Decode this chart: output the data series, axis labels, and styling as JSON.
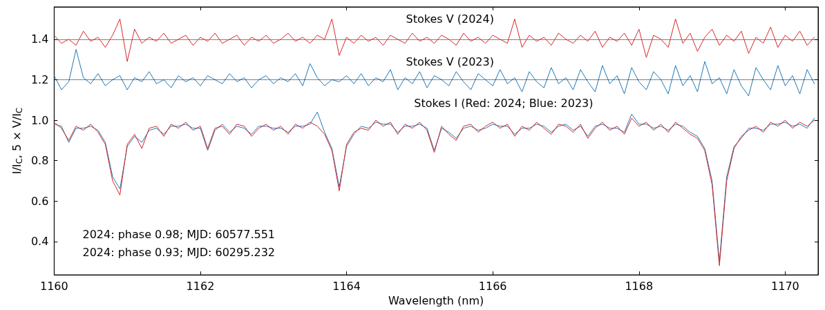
{
  "chart_data": {
    "type": "line",
    "xlabel": "Wavelength (nm)",
    "ylabel": "I/I$_{C}$, 5 × V/I$_{C}$",
    "xlim": [
      1160,
      1170.45
    ],
    "xticks": [
      1160,
      1162,
      1164,
      1166,
      1168,
      1170
    ],
    "ylim": [
      0.235,
      1.56
    ],
    "yticks": [
      0.4,
      0.6,
      0.8,
      {
        "value": 1.0,
        "label": "1.0"
      },
      1.2,
      1.4
    ],
    "grid": false,
    "marker": "none",
    "line_style": "solid",
    "x": [
      1160.0,
      1160.1,
      1160.2,
      1160.3,
      1160.4,
      1160.5,
      1160.6,
      1160.7,
      1160.8,
      1160.9,
      1161.0,
      1161.1,
      1161.2,
      1161.3,
      1161.4,
      1161.5,
      1161.6,
      1161.7,
      1161.8,
      1161.9,
      1162.0,
      1162.1,
      1162.2,
      1162.3,
      1162.4,
      1162.5,
      1162.6,
      1162.7,
      1162.8,
      1162.9,
      1163.0,
      1163.1,
      1163.2,
      1163.3,
      1163.4,
      1163.5,
      1163.6,
      1163.7,
      1163.8,
      1163.9,
      1164.0,
      1164.1,
      1164.2,
      1164.3,
      1164.4,
      1164.5,
      1164.6,
      1164.7,
      1164.8,
      1164.9,
      1165.0,
      1165.1,
      1165.2,
      1165.3,
      1165.4,
      1165.5,
      1165.6,
      1165.7,
      1165.8,
      1165.9,
      1166.0,
      1166.1,
      1166.2,
      1166.3,
      1166.4,
      1166.5,
      1166.6,
      1166.7,
      1166.8,
      1166.9,
      1167.0,
      1167.1,
      1167.2,
      1167.3,
      1167.4,
      1167.5,
      1167.6,
      1167.7,
      1167.8,
      1167.9,
      1168.0,
      1168.1,
      1168.2,
      1168.3,
      1168.4,
      1168.5,
      1168.6,
      1168.7,
      1168.8,
      1168.9,
      1169.0,
      1169.1,
      1169.2,
      1169.3,
      1169.4,
      1169.5,
      1169.6,
      1169.7,
      1169.8,
      1169.9,
      1170.0,
      1170.1,
      1170.2,
      1170.3,
      1170.4
    ],
    "series": [
      {
        "color": "#1f77b4",
        "values": [
          0.98,
          0.97,
          0.89,
          0.96,
          0.96,
          0.97,
          0.95,
          0.89,
          0.72,
          0.66,
          0.87,
          0.92,
          0.89,
          0.95,
          0.96,
          0.93,
          0.97,
          0.97,
          0.98,
          0.96,
          0.96,
          0.85,
          0.95,
          0.98,
          0.94,
          0.97,
          0.96,
          0.93,
          0.97,
          0.97,
          0.96,
          0.96,
          0.94,
          0.97,
          0.97,
          0.98,
          1.04,
          0.94,
          0.86,
          0.67,
          0.87,
          0.93,
          0.97,
          0.96,
          0.99,
          0.98,
          0.98,
          0.94,
          0.97,
          0.97,
          0.98,
          0.96,
          0.85,
          0.96,
          0.94,
          0.91,
          0.96,
          0.97,
          0.95,
          0.96,
          0.98,
          0.97,
          0.97,
          0.93,
          0.96,
          0.96,
          0.98,
          0.97,
          0.94,
          0.97,
          0.98,
          0.95,
          0.97,
          0.92,
          0.97,
          0.98,
          0.96,
          0.96,
          0.94,
          1.03,
          0.98,
          0.98,
          0.96,
          0.97,
          0.95,
          0.98,
          0.97,
          0.94,
          0.92,
          0.86,
          0.7,
          0.3,
          0.72,
          0.87,
          0.91,
          0.96,
          0.96,
          0.95,
          0.98,
          0.98,
          0.99,
          0.97,
          0.98,
          0.96,
          1.01
        ]
      },
      {
        "color": "#d62728",
        "values": [
          0.99,
          0.96,
          0.9,
          0.97,
          0.95,
          0.98,
          0.94,
          0.88,
          0.7,
          0.63,
          0.88,
          0.93,
          0.86,
          0.96,
          0.97,
          0.92,
          0.98,
          0.96,
          0.99,
          0.95,
          0.97,
          0.86,
          0.96,
          0.97,
          0.93,
          0.98,
          0.97,
          0.92,
          0.96,
          0.98,
          0.95,
          0.97,
          0.93,
          0.98,
          0.96,
          0.99,
          0.97,
          0.93,
          0.85,
          0.65,
          0.88,
          0.94,
          0.96,
          0.95,
          1.0,
          0.97,
          0.99,
          0.93,
          0.98,
          0.96,
          0.99,
          0.95,
          0.84,
          0.97,
          0.93,
          0.9,
          0.97,
          0.98,
          0.94,
          0.97,
          0.99,
          0.96,
          0.98,
          0.92,
          0.97,
          0.95,
          0.99,
          0.96,
          0.93,
          0.98,
          0.97,
          0.94,
          0.98,
          0.91,
          0.96,
          0.99,
          0.95,
          0.97,
          0.93,
          1.01,
          0.97,
          0.99,
          0.95,
          0.98,
          0.94,
          0.99,
          0.96,
          0.93,
          0.91,
          0.85,
          0.68,
          0.28,
          0.7,
          0.86,
          0.92,
          0.95,
          0.97,
          0.94,
          0.99,
          0.97,
          1.0,
          0.96,
          0.99,
          0.97,
          1.0
        ]
      },
      {
        "color": "#1f77b4",
        "values": [
          1.22,
          1.15,
          1.19,
          1.35,
          1.21,
          1.18,
          1.23,
          1.17,
          1.2,
          1.22,
          1.15,
          1.21,
          1.19,
          1.24,
          1.18,
          1.2,
          1.16,
          1.22,
          1.19,
          1.21,
          1.17,
          1.22,
          1.2,
          1.18,
          1.23,
          1.19,
          1.21,
          1.16,
          1.2,
          1.22,
          1.18,
          1.21,
          1.19,
          1.23,
          1.17,
          1.28,
          1.21,
          1.17,
          1.2,
          1.19,
          1.22,
          1.18,
          1.23,
          1.17,
          1.21,
          1.19,
          1.25,
          1.15,
          1.21,
          1.18,
          1.24,
          1.16,
          1.22,
          1.2,
          1.17,
          1.24,
          1.19,
          1.15,
          1.23,
          1.2,
          1.17,
          1.25,
          1.18,
          1.21,
          1.14,
          1.24,
          1.19,
          1.16,
          1.26,
          1.18,
          1.21,
          1.15,
          1.25,
          1.19,
          1.14,
          1.27,
          1.18,
          1.22,
          1.13,
          1.26,
          1.19,
          1.15,
          1.24,
          1.2,
          1.13,
          1.27,
          1.17,
          1.22,
          1.14,
          1.29,
          1.18,
          1.21,
          1.13,
          1.25,
          1.17,
          1.12,
          1.26,
          1.2,
          1.15,
          1.27,
          1.17,
          1.22,
          1.13,
          1.25,
          1.18
        ]
      },
      {
        "color": "#d62728",
        "values": [
          1.42,
          1.38,
          1.4,
          1.37,
          1.44,
          1.39,
          1.41,
          1.36,
          1.42,
          1.5,
          1.29,
          1.45,
          1.38,
          1.41,
          1.39,
          1.43,
          1.38,
          1.4,
          1.42,
          1.37,
          1.41,
          1.39,
          1.43,
          1.38,
          1.4,
          1.42,
          1.37,
          1.41,
          1.39,
          1.42,
          1.38,
          1.4,
          1.43,
          1.39,
          1.41,
          1.38,
          1.42,
          1.4,
          1.5,
          1.32,
          1.41,
          1.38,
          1.42,
          1.39,
          1.41,
          1.37,
          1.42,
          1.4,
          1.38,
          1.43,
          1.39,
          1.41,
          1.38,
          1.42,
          1.4,
          1.37,
          1.43,
          1.39,
          1.41,
          1.38,
          1.42,
          1.4,
          1.38,
          1.5,
          1.36,
          1.42,
          1.39,
          1.41,
          1.37,
          1.43,
          1.4,
          1.38,
          1.42,
          1.39,
          1.44,
          1.36,
          1.41,
          1.39,
          1.43,
          1.37,
          1.45,
          1.31,
          1.42,
          1.4,
          1.36,
          1.5,
          1.38,
          1.43,
          1.34,
          1.41,
          1.45,
          1.37,
          1.42,
          1.39,
          1.44,
          1.33,
          1.41,
          1.38,
          1.46,
          1.36,
          1.42,
          1.39,
          1.44,
          1.37,
          1.41
        ]
      }
    ],
    "ref_lines": [
      {
        "axis": "y",
        "value": 1.4,
        "color": "#000000",
        "line_style": "dotted"
      },
      {
        "axis": "y",
        "value": 1.2,
        "color": "#000000",
        "line_style": "dotted"
      }
    ],
    "annotations": [
      "Stokes V (2024)",
      "Stokes V (2023)",
      "Stokes I (Red: 2024; Blue: 2023)",
      "2024: phase 0.98; MJD: 60577.551",
      "2024: phase 0.93; MJD: 60295.232"
    ]
  }
}
